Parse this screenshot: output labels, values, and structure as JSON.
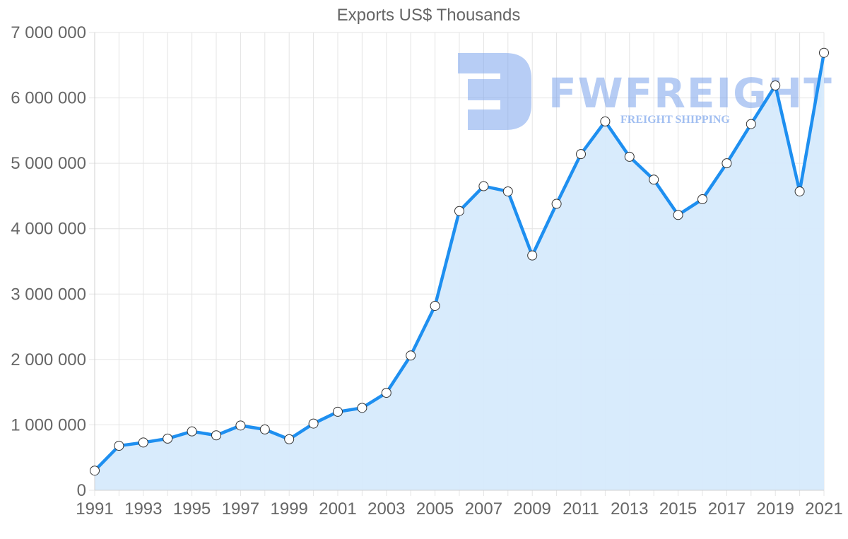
{
  "chart_data": {
    "type": "line",
    "title": "Exports US$ Thousands",
    "xlabel": "",
    "ylabel": "",
    "x": [
      1991,
      1992,
      1993,
      1994,
      1995,
      1996,
      1997,
      1998,
      1999,
      2000,
      2001,
      2002,
      2003,
      2004,
      2005,
      2006,
      2007,
      2008,
      2009,
      2010,
      2011,
      2012,
      2013,
      2014,
      2015,
      2016,
      2017,
      2018,
      2019,
      2020,
      2021
    ],
    "series": [
      {
        "name": "Exports US$ Thousands",
        "values": [
          300000,
          680000,
          730000,
          790000,
          900000,
          840000,
          990000,
          930000,
          780000,
          1020000,
          1200000,
          1260000,
          1490000,
          2060000,
          2820000,
          4270000,
          4650000,
          4570000,
          3590000,
          4380000,
          5140000,
          5640000,
          5100000,
          4750000,
          4210000,
          4450000,
          5000000,
          5600000,
          6190000,
          4570000,
          6690000
        ],
        "color": "#1e8ff0",
        "fill": "#d6eafc"
      }
    ],
    "ylim": [
      0,
      7000000
    ],
    "yticks": [
      "0",
      "1 000 000",
      "2 000 000",
      "3 000 000",
      "4 000 000",
      "5 000 000",
      "6 000 000",
      "7 000 000"
    ],
    "xticks": [
      "1991",
      "1993",
      "1995",
      "1997",
      "1999",
      "2001",
      "2003",
      "2005",
      "2007",
      "2009",
      "2011",
      "2013",
      "2015",
      "2017",
      "2019",
      "2021"
    ],
    "grid": true,
    "legend": "none",
    "area_fill": true
  },
  "watermark": {
    "brand": "FWFREIGHT",
    "tagline": "FREIGHT SHIPPING"
  }
}
